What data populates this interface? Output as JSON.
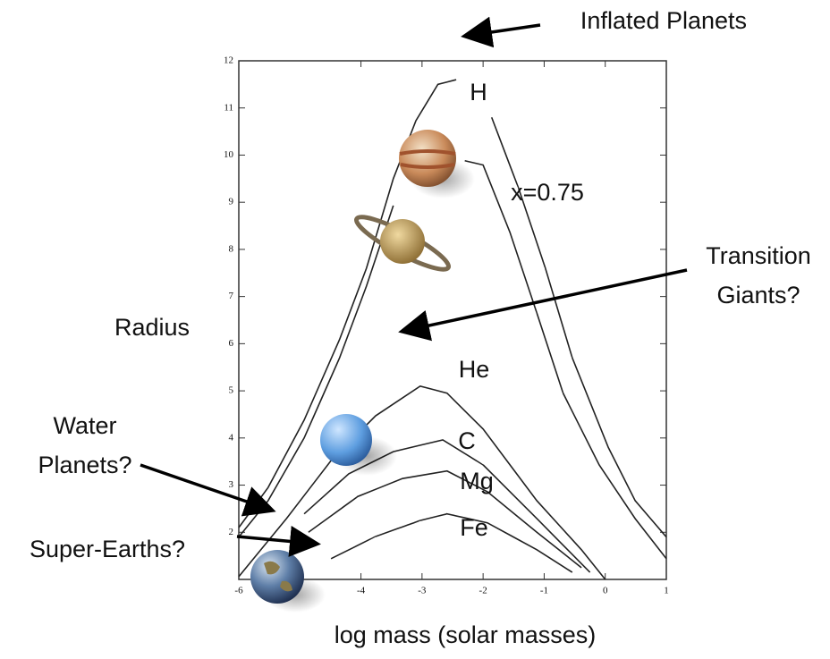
{
  "chart_data": {
    "type": "line",
    "xlabel": "log mass (solar masses)",
    "ylabel": "Radius",
    "annotations": [
      "Inflated Planets",
      "Transition Giants?",
      "Water Planets?",
      "Super-Earths?"
    ],
    "xlim": [
      -6,
      1
    ],
    "ylim": [
      1,
      12
    ],
    "xticks": [
      -6,
      -4,
      -3,
      -2,
      -1,
      0,
      1
    ],
    "yticks": [
      2,
      3,
      4,
      5,
      6,
      7,
      8,
      9,
      10,
      11,
      12
    ],
    "series": [
      {
        "name": "H",
        "color": "#222222",
        "x": [
          -6,
          -5.52,
          -4.93,
          -4.35,
          -3.91,
          -3.47,
          -3.1,
          -2.74,
          -2.44,
          null,
          -1.86,
          -1.42,
          -0.98,
          -0.54,
          0.05,
          0.49,
          1.0
        ],
        "values": [
          2.1,
          2.95,
          4.38,
          6.09,
          7.6,
          9.5,
          10.73,
          11.5,
          11.6,
          null,
          10.8,
          9.3,
          7.6,
          5.7,
          3.8,
          2.67,
          1.9
        ]
      },
      {
        "name": "x=0.75",
        "color": "#222222",
        "x": [
          -6,
          -5.52,
          -4.93,
          -4.35,
          -3.91,
          -3.47,
          null,
          -2.3,
          -2.0,
          -1.56,
          -1.12,
          -0.69,
          -0.1,
          0.49,
          1.0
        ],
        "values": [
          1.9,
          2.67,
          4.0,
          5.7,
          7.22,
          8.93,
          null,
          9.88,
          9.79,
          8.36,
          6.65,
          4.95,
          3.43,
          2.29,
          1.44
        ]
      },
      {
        "name": "He",
        "color": "#222222",
        "x": [
          -6,
          -5.22,
          -4.49,
          -3.76,
          -3.03,
          -2.59,
          -2.0,
          -1.12,
          -0.39,
          0
        ],
        "values": [
          1.06,
          2.29,
          3.52,
          4.47,
          5.1,
          4.95,
          4.19,
          2.67,
          1.63,
          1.0
        ]
      },
      {
        "name": "C",
        "color": "#222222",
        "x": [
          -4.93,
          -4.2,
          -3.47,
          -2.66,
          -2.0,
          -1.12,
          -0.25
        ],
        "values": [
          2.39,
          3.24,
          3.71,
          3.96,
          3.43,
          2.29,
          1.15
        ]
      },
      {
        "name": "Mg",
        "color": "#222222",
        "x": [
          -4.86,
          -4.05,
          -3.32,
          -2.59,
          -1.93,
          -1.12,
          -0.39
        ],
        "values": [
          2.0,
          2.76,
          3.14,
          3.3,
          2.86,
          2.0,
          1.25
        ]
      },
      {
        "name": "Fe",
        "color": "#222222",
        "x": [
          -4.49,
          -3.76,
          -3.03,
          -2.59,
          -1.93,
          -1.12,
          -0.54
        ],
        "values": [
          1.44,
          1.91,
          2.25,
          2.39,
          2.2,
          1.63,
          1.15
        ]
      }
    ]
  }
}
